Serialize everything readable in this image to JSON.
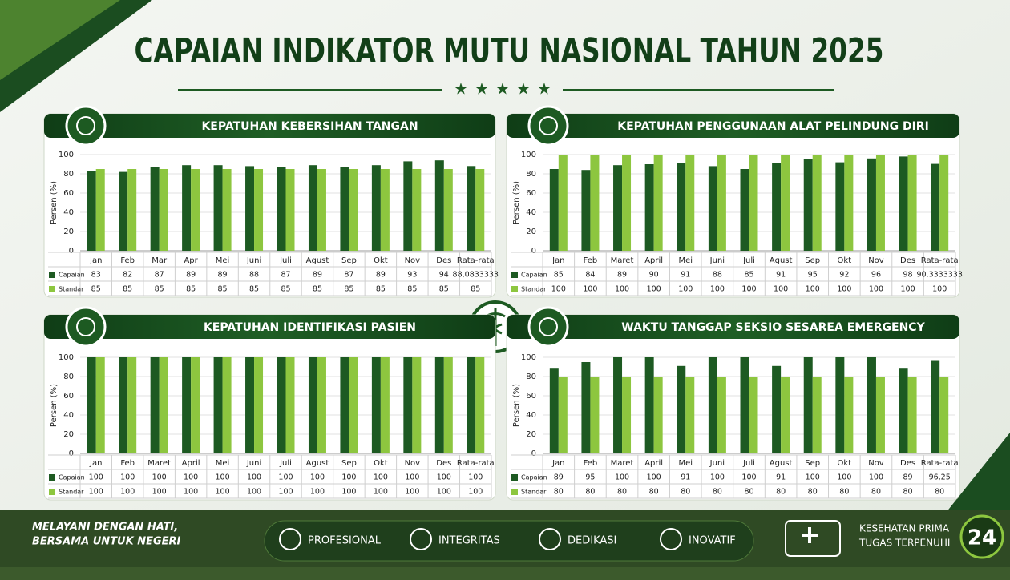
{
  "header": {
    "title": "CAPAIAN INDIKATOR MUTU NASIONAL TAHUN 2025"
  },
  "chart_data": [
    {
      "type": "bar",
      "title": "KEPATUHAN KEBERSIHAN TANGAN",
      "ylabel": "Persen (%)",
      "categories": [
        "Jan",
        "Feb",
        "Mar",
        "Apr",
        "Mei",
        "Juni",
        "Juli",
        "Agust",
        "Sep",
        "Okt",
        "Nov",
        "Des",
        "Rata-rata"
      ],
      "series": [
        {
          "name": "Capaian",
          "color": "#1d5a22",
          "values": [
            83,
            82,
            87,
            89,
            89,
            88,
            87,
            89,
            87,
            89,
            93,
            94,
            88.0833333
          ],
          "value_labels": [
            "83",
            "82",
            "87",
            "89",
            "89",
            "88",
            "87",
            "89",
            "87",
            "89",
            "93",
            "94",
            "88,0833333"
          ]
        },
        {
          "name": "Standar",
          "color": "#8dc63f",
          "values": [
            85,
            85,
            85,
            85,
            85,
            85,
            85,
            85,
            85,
            85,
            85,
            85,
            85
          ]
        }
      ],
      "ylim": [
        0,
        100
      ],
      "yticks": [
        0,
        20,
        40,
        60,
        80,
        100
      ],
      "grid": true
    },
    {
      "type": "bar",
      "title": "KEPATUHAN PENGGUNAAN ALAT PELINDUNG DIRI",
      "ylabel": "Persen (%)",
      "categories": [
        "Jan",
        "Feb",
        "Maret",
        "April",
        "Mei",
        "Juni",
        "Juli",
        "Agust",
        "Sep",
        "Okt",
        "Nov",
        "Des",
        "Rata-rata"
      ],
      "series": [
        {
          "name": "Capaian",
          "color": "#1d5a22",
          "values": [
            85,
            84,
            89,
            90,
            91,
            88,
            85,
            91,
            95,
            92,
            96,
            98,
            90.3333333
          ],
          "value_labels": [
            "85",
            "84",
            "89",
            "90",
            "91",
            "88",
            "85",
            "91",
            "95",
            "92",
            "96",
            "98",
            "90,3333333"
          ]
        },
        {
          "name": "Standar",
          "color": "#8dc63f",
          "values": [
            100,
            100,
            100,
            100,
            100,
            100,
            100,
            100,
            100,
            100,
            100,
            100,
            100
          ]
        }
      ],
      "ylim": [
        0,
        100
      ],
      "yticks": [
        0,
        20,
        40,
        60,
        80,
        100
      ],
      "grid": true
    },
    {
      "type": "bar",
      "title": "KEPATUHAN IDENTIFIKASI PASIEN",
      "ylabel": "Persen (%)",
      "categories": [
        "Jan",
        "Feb",
        "Maret",
        "April",
        "Mei",
        "Juni",
        "Juli",
        "Agust",
        "Sep",
        "Okt",
        "Nov",
        "Des",
        "Rata-rata"
      ],
      "series": [
        {
          "name": "Capaian",
          "color": "#1d5a22",
          "values": [
            100,
            100,
            100,
            100,
            100,
            100,
            100,
            100,
            100,
            100,
            100,
            100,
            100
          ]
        },
        {
          "name": "Standar",
          "color": "#8dc63f",
          "values": [
            100,
            100,
            100,
            100,
            100,
            100,
            100,
            100,
            100,
            100,
            100,
            100,
            100
          ]
        }
      ],
      "ylim": [
        0,
        100
      ],
      "yticks": [
        0,
        20,
        40,
        60,
        80,
        100
      ],
      "grid": true
    },
    {
      "type": "bar",
      "title": "WAKTU TANGGAP SEKSIO SESAREA EMERGENCY",
      "ylabel": "Persen (%)",
      "categories": [
        "Jan",
        "Feb",
        "Maret",
        "April",
        "Mei",
        "Juni",
        "Juli",
        "Agust",
        "Sep",
        "Okt",
        "Nov",
        "Des",
        "Rata-rata"
      ],
      "series": [
        {
          "name": "Capaian",
          "color": "#1d5a22",
          "values": [
            89,
            95,
            100,
            100,
            91,
            100,
            100,
            91,
            100,
            100,
            100,
            89,
            96.25
          ],
          "value_labels": [
            "89",
            "95",
            "100",
            "100",
            "91",
            "100",
            "100",
            "91",
            "100",
            "100",
            "100",
            "89",
            "96,25"
          ]
        },
        {
          "name": "Standar",
          "color": "#8dc63f",
          "values": [
            80,
            80,
            80,
            80,
            80,
            80,
            80,
            80,
            80,
            80,
            80,
            80,
            80
          ]
        }
      ],
      "ylim": [
        0,
        100
      ],
      "yticks": [
        0,
        20,
        40,
        60,
        80,
        100
      ],
      "grid": true
    }
  ],
  "footer": {
    "motto": [
      "MELAYANI DENGAN HATI,",
      "BERSAMA UNTUK NEGERI"
    ],
    "values": [
      "PROFESIONAL",
      "INTEGRITAS",
      "DEDIKASI",
      "INOVATIF"
    ],
    "tagline": [
      "KESEHATAN PRIMA",
      "TUGAS TERPENUHI"
    ],
    "badge": "24"
  }
}
